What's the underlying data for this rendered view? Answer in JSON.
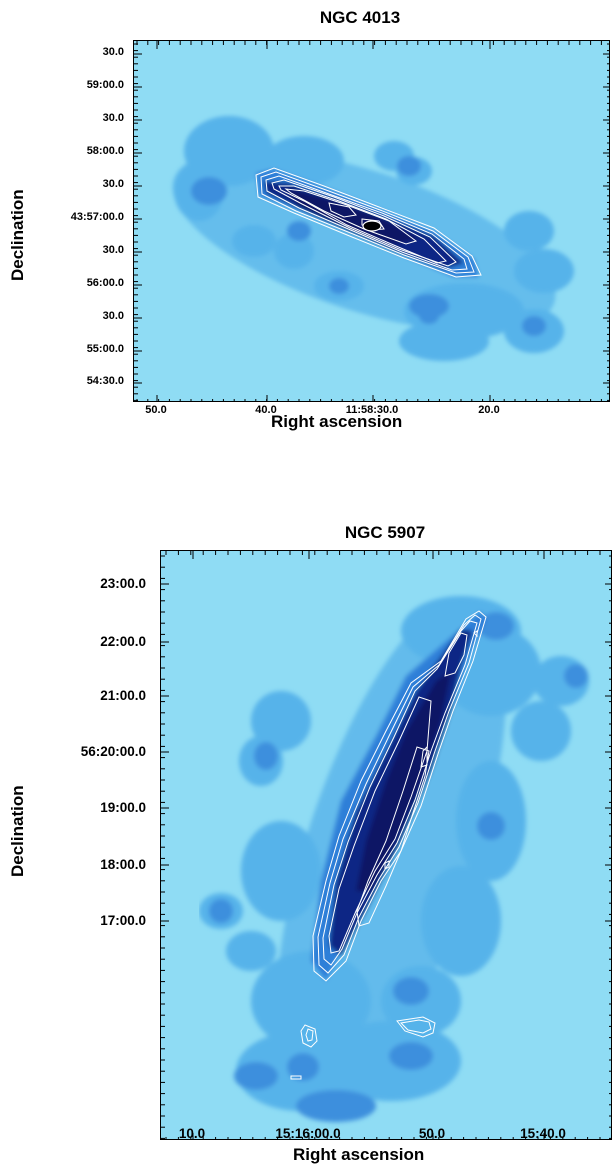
{
  "panel1": {
    "title": "NGC 4013",
    "y_ticks": [
      "30.0",
      "59:00.0",
      "30.0",
      "58:00.0",
      "30.0",
      "43:57:00.0",
      "30.0",
      "56:00.0",
      "30.0",
      "55:00.0",
      "54:30.0"
    ],
    "x_ticks": [
      "50.0",
      "40.0",
      "11:58:30.0",
      "20.0"
    ],
    "xlabel": "Right ascension",
    "ylabel": "Declination"
  },
  "panel2": {
    "title": "NGC 5907",
    "y_ticks": [
      "23:00.0",
      "22:00.0",
      "21:00.0",
      "56:20:00.0",
      "19:00.0",
      "18:00.0",
      "17:00.0"
    ],
    "x_ticks": [
      "10.0",
      "15:16:00.0",
      "50.0",
      "15:40.0"
    ],
    "xlabel": "Right ascension",
    "ylabel": "Declination"
  },
  "colors": {
    "background": "#8fdcf4",
    "halo": "#55aee8",
    "mid": "#2f7fd8",
    "core": "#0a1a6e",
    "contour": "#ffffff"
  }
}
